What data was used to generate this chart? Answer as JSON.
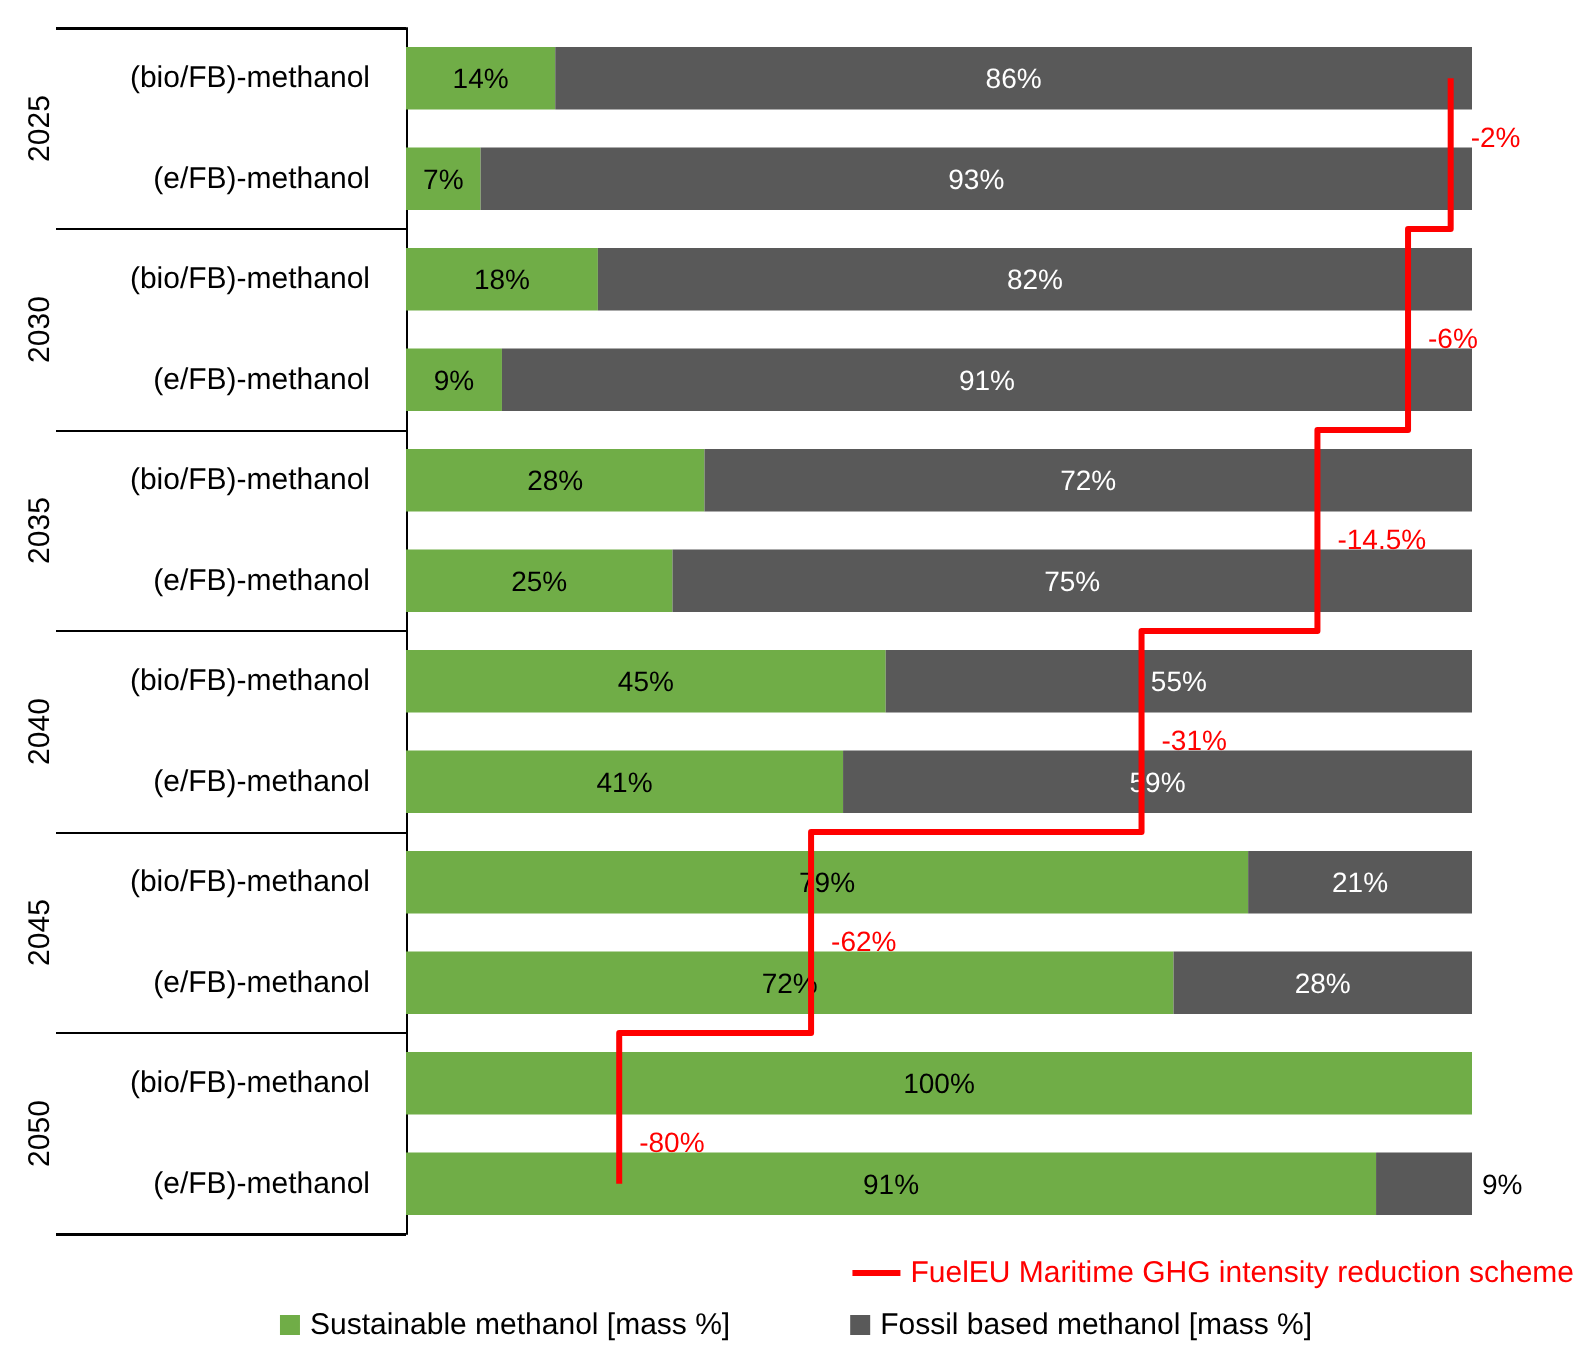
{
  "chart_data": {
    "type": "bar",
    "orientation": "horizontal",
    "stacked": true,
    "categories": [
      "(bio/FB)-methanol",
      "(e/FB)-methanol",
      "(bio/FB)-methanol",
      "(e/FB)-methanol",
      "(bio/FB)-methanol",
      "(e/FB)-methanol",
      "(bio/FB)-methanol",
      "(e/FB)-methanol",
      "(bio/FB)-methanol",
      "(e/FB)-methanol",
      "(bio/FB)-methanol",
      "(e/FB)-methanol"
    ],
    "series": [
      {
        "name": "Sustainable methanol [mass %]",
        "color": "#70ad47",
        "values": [
          14,
          7,
          18,
          9,
          28,
          25,
          45,
          41,
          79,
          72,
          100,
          91
        ],
        "value_labels": [
          "14%",
          "7%",
          "18%",
          "9%",
          "28%",
          "25%",
          "45%",
          "41%",
          "79%",
          "72%",
          "100%",
          "91%"
        ]
      },
      {
        "name": "Fossil based methanol [mass %]",
        "color": "#595959",
        "values": [
          86,
          93,
          82,
          91,
          72,
          75,
          55,
          59,
          21,
          28,
          0,
          9
        ],
        "value_labels": [
          "86%",
          "93%",
          "82%",
          "91%",
          "72%",
          "75%",
          "55%",
          "59%",
          "21%",
          "28%",
          null,
          "9%"
        ]
      },
      {
        "name": "FuelEU Maritime GHG intensity reduction scheme",
        "type": "step",
        "color": "#ff0000",
        "values": [
          98,
          98,
          94,
          94,
          85.5,
          85.5,
          69,
          69,
          38,
          38,
          20,
          20
        ]
      }
    ],
    "annotations": [
      "2025",
      "2030",
      "2035",
      "2040",
      "2045",
      "2050",
      {
        "text": "-2%",
        "x": 98
      },
      {
        "text": "-6%",
        "x": 94
      },
      {
        "text": "-14.5%",
        "x": 85.5
      },
      {
        "text": "-31%",
        "x": 69
      },
      {
        "text": "-62%",
        "x": 38
      },
      {
        "text": "-80%",
        "x": 20
      }
    ],
    "legend": "bottom"
  }
}
